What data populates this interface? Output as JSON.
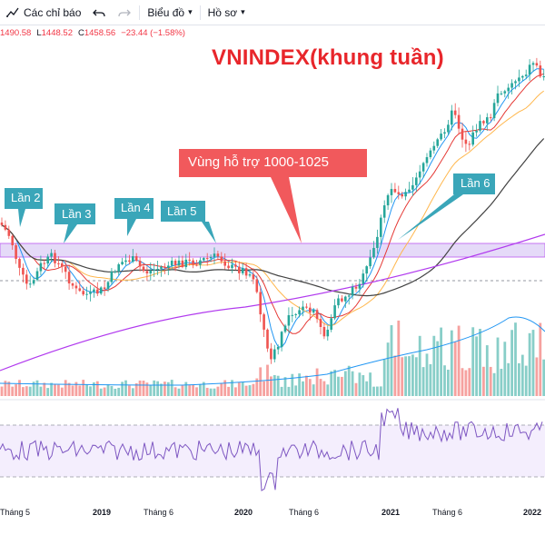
{
  "toolbar": {
    "indicators_label": "Các chỉ báo",
    "chart_type_label": "Biểu đồ",
    "profile_label": "Hồ sơ"
  },
  "ohlc": {
    "open": "1490.58",
    "low_label": "L",
    "low": "1448.52",
    "close_label": "C",
    "close": "1458.56",
    "change": "−23.44 (−1.58%)"
  },
  "title": "VNINDEX(khung tuần)",
  "annotations": {
    "support_zone": "Vùng hỗ trợ 1000-1025",
    "touches": [
      "Lần 2",
      "Lần 3",
      "Lần 4",
      "Lần 5",
      "Lần 6"
    ]
  },
  "x_axis": {
    "ticks": [
      "Tháng 5",
      "2019",
      "Tháng 6",
      "2020",
      "Tháng 6",
      "2021",
      "Tháng 6",
      "2022"
    ]
  },
  "colors": {
    "up": "#26a69a",
    "down": "#ef5350",
    "ma_fast": "#2196f3",
    "ma_mid": "#e53935",
    "ma_slow": "#ffb74d",
    "ma_long": "#424242",
    "ma_vlong": "#b13aee",
    "zone": "#e1d4f7",
    "callout": "#3aa6b9",
    "zone_callout": "#f1595c",
    "title": "#e8262b",
    "rsi": "#7e57c2"
  },
  "icons": [
    "indicators-icon",
    "undo-icon",
    "redo-icon",
    "caret-down-icon"
  ]
}
